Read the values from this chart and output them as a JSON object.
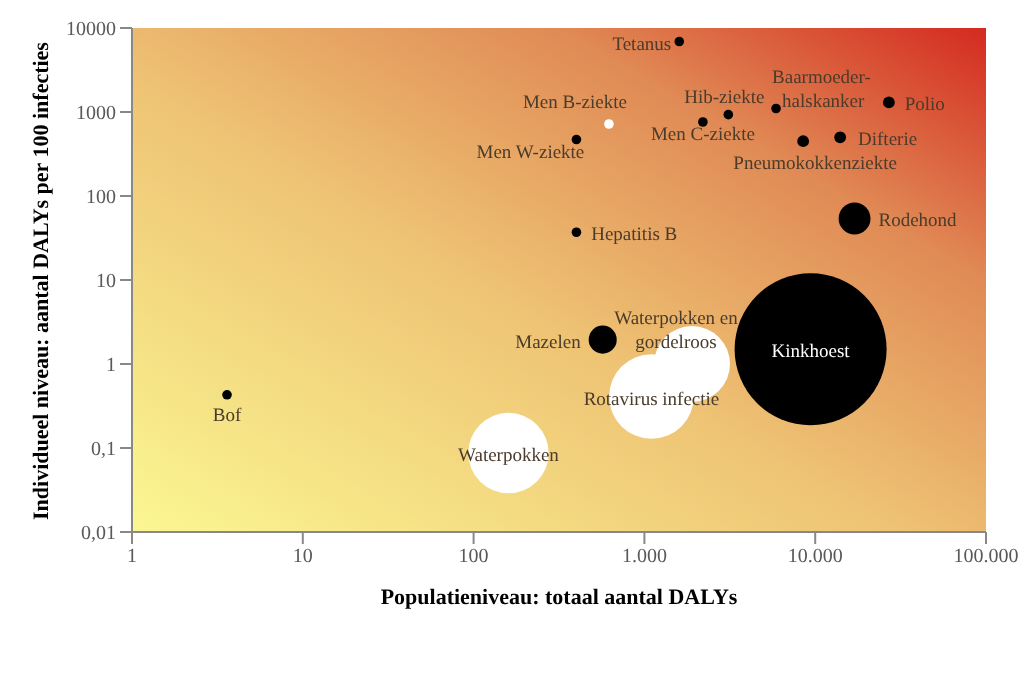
{
  "chart_data": {
    "type": "bubble",
    "xlabel": "Populatieniveau: totaal aantal DALYs",
    "ylabel": "Individueel niveau: aantal DALYs per 100 infecties",
    "log": "xy",
    "xlim": [
      1,
      100000
    ],
    "xticks": [
      1,
      10,
      100,
      {
        "value": 1000,
        "label": "1.000"
      },
      {
        "value": 10000,
        "label": "10.000"
      },
      {
        "value": 100000,
        "label": "100.000"
      }
    ],
    "ylim": [
      0.01,
      10000
    ],
    "yticks": [
      {
        "value": 0.01,
        "label": "0,01"
      },
      {
        "value": 0.1,
        "label": "0,1"
      },
      1,
      10,
      100,
      1000,
      10000
    ],
    "series": [
      {
        "name": "Tetanus",
        "color": "#000000",
        "x": [
          1600
        ],
        "values": [
          6900
        ],
        "sizes": [
          0.004
        ]
      },
      {
        "name": "Men B-ziekte",
        "color": "#ffffff",
        "x": [
          620
        ],
        "values": [
          720
        ],
        "sizes": [
          0.004
        ]
      },
      {
        "name": "Men W-ziekte",
        "color": "#000000",
        "x": [
          400
        ],
        "values": [
          470
        ],
        "sizes": [
          0.004
        ]
      },
      {
        "name": "Hib-ziekte",
        "color": "#000000",
        "x": [
          3100
        ],
        "values": [
          930
        ],
        "sizes": [
          0.004
        ]
      },
      {
        "name": "Men C-ziekte",
        "color": "#000000",
        "x": [
          2200
        ],
        "values": [
          760
        ],
        "sizes": [
          0.004
        ]
      },
      {
        "name": "Baarmoeder-halskanker",
        "color": "#000000",
        "x": [
          5900
        ],
        "values": [
          1100
        ],
        "sizes": [
          0.004
        ]
      },
      {
        "name": "Polio",
        "color": "#000000",
        "x": [
          27000
        ],
        "values": [
          1300
        ],
        "sizes": [
          0.006
        ]
      },
      {
        "name": "Pneumokokkenziekte",
        "color": "#000000",
        "x": [
          8500
        ],
        "values": [
          450
        ],
        "sizes": [
          0.006
        ]
      },
      {
        "name": "Difterie",
        "color": "#000000",
        "x": [
          14000
        ],
        "values": [
          500
        ],
        "sizes": [
          0.006
        ]
      },
      {
        "name": "Rodehond",
        "color": "#000000",
        "x": [
          17000
        ],
        "values": [
          54
        ],
        "sizes": [
          0.044
        ]
      },
      {
        "name": "Hepatitis B",
        "color": "#000000",
        "x": [
          400
        ],
        "values": [
          37
        ],
        "sizes": [
          0.004
        ]
      },
      {
        "name": "Mazelen",
        "color": "#000000",
        "x": [
          570
        ],
        "values": [
          1.95
        ],
        "sizes": [
          0.034
        ]
      },
      {
        "name": "Waterpokken en gordelroos",
        "color": "#ffffff",
        "x": [
          1900
        ],
        "values": [
          1.0
        ],
        "sizes": [
          0.25
        ]
      },
      {
        "name": "Rotavirus infectie",
        "color": "#ffffff",
        "x": [
          1100
        ],
        "values": [
          0.41
        ],
        "sizes": [
          0.31
        ]
      },
      {
        "name": "Kinkhoest",
        "color": "#000000",
        "x": [
          9400
        ],
        "values": [
          1.5
        ],
        "sizes": [
          1
        ]
      },
      {
        "name": "Waterpokken",
        "color": "#ffffff",
        "x": [
          160
        ],
        "values": [
          0.087
        ],
        "sizes": [
          0.28
        ]
      },
      {
        "name": "Bof",
        "color": "#000000",
        "x": [
          3.6
        ],
        "values": [
          0.43
        ],
        "sizes": [
          0.004
        ]
      }
    ]
  }
}
